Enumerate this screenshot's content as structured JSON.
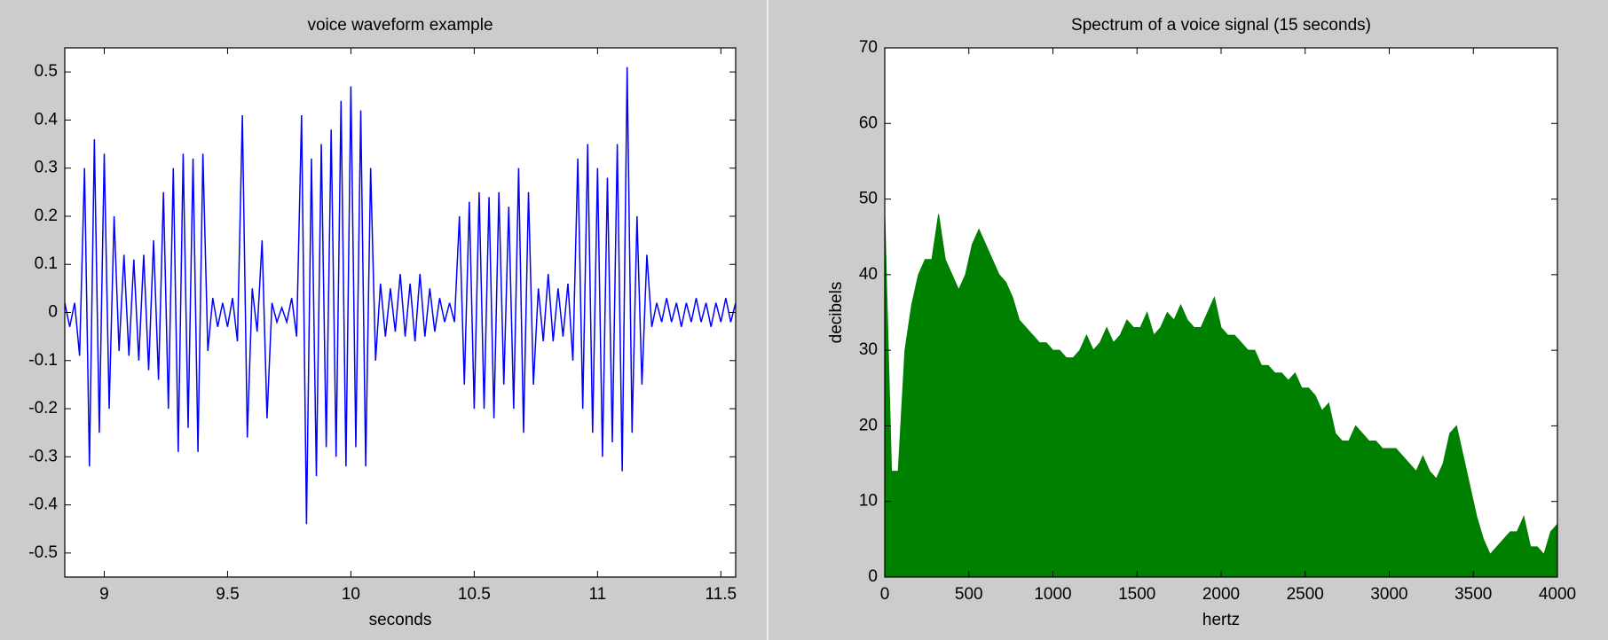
{
  "chart_data": [
    {
      "type": "line",
      "title": "voice waveform example",
      "xlabel": "seconds",
      "color": "#0000ff",
      "xlim": [
        8.84,
        11.56
      ],
      "ylim": [
        -0.55,
        0.55
      ],
      "xticks": [
        9,
        9.5,
        10,
        10.5,
        11,
        11.5
      ],
      "yticks": [
        -0.5,
        -0.4,
        -0.3,
        -0.2,
        -0.1,
        0,
        0.1,
        0.2,
        0.3,
        0.4,
        0.5
      ],
      "x": [
        8.84,
        8.86,
        8.88,
        8.9,
        8.92,
        8.94,
        8.96,
        8.98,
        9,
        9.02,
        9.04,
        9.06,
        9.08,
        9.1,
        9.12,
        9.14,
        9.16,
        9.18,
        9.2,
        9.22,
        9.24,
        9.26,
        9.28,
        9.3,
        9.32,
        9.34,
        9.36,
        9.38,
        9.4,
        9.42,
        9.44,
        9.46,
        9.48,
        9.5,
        9.52,
        9.54,
        9.56,
        9.58,
        9.6,
        9.62,
        9.64,
        9.66,
        9.68,
        9.7,
        9.72,
        9.74,
        9.76,
        9.78,
        9.8,
        9.82,
        9.84,
        9.86,
        9.88,
        9.9,
        9.92,
        9.94,
        9.96,
        9.98,
        10,
        10.02,
        10.04,
        10.06,
        10.08,
        10.1,
        10.12,
        10.14,
        10.16,
        10.18,
        10.2,
        10.22,
        10.24,
        10.26,
        10.28,
        10.3,
        10.32,
        10.34,
        10.36,
        10.38,
        10.4,
        10.42,
        10.44,
        10.46,
        10.48,
        10.5,
        10.52,
        10.54,
        10.56,
        10.58,
        10.6,
        10.62,
        10.64,
        10.66,
        10.68,
        10.7,
        10.72,
        10.74,
        10.76,
        10.78,
        10.8,
        10.82,
        10.84,
        10.86,
        10.88,
        10.9,
        10.92,
        10.94,
        10.96,
        10.98,
        11,
        11.02,
        11.04,
        11.06,
        11.08,
        11.1,
        11.12,
        11.14,
        11.16,
        11.18,
        11.2,
        11.22,
        11.24,
        11.26,
        11.28,
        11.3,
        11.32,
        11.34,
        11.36,
        11.38,
        11.4,
        11.42,
        11.44,
        11.46,
        11.48,
        11.5,
        11.52,
        11.54,
        11.56
      ],
      "values": [
        0.02,
        -0.03,
        0.02,
        -0.09,
        0.3,
        -0.32,
        0.36,
        -0.25,
        0.33,
        -0.2,
        0.2,
        -0.08,
        0.12,
        -0.09,
        0.11,
        -0.1,
        0.12,
        -0.12,
        0.15,
        -0.14,
        0.25,
        -0.2,
        0.3,
        -0.29,
        0.33,
        -0.24,
        0.32,
        -0.29,
        0.33,
        -0.08,
        0.03,
        -0.03,
        0.02,
        -0.03,
        0.03,
        -0.06,
        0.41,
        -0.26,
        0.05,
        -0.04,
        0.15,
        -0.22,
        0.02,
        -0.02,
        0.01,
        -0.02,
        0.03,
        -0.05,
        0.41,
        -0.44,
        0.32,
        -0.34,
        0.35,
        -0.28,
        0.38,
        -0.3,
        0.44,
        -0.32,
        0.47,
        -0.28,
        0.42,
        -0.32,
        0.3,
        -0.1,
        0.06,
        -0.05,
        0.05,
        -0.04,
        0.08,
        -0.05,
        0.06,
        -0.06,
        0.08,
        -0.05,
        0.05,
        -0.04,
        0.03,
        -0.02,
        0.02,
        -0.02,
        0.2,
        -0.15,
        0.23,
        -0.2,
        0.25,
        -0.2,
        0.24,
        -0.22,
        0.25,
        -0.15,
        0.22,
        -0.2,
        0.3,
        -0.25,
        0.25,
        -0.15,
        0.05,
        -0.06,
        0.08,
        -0.06,
        0.05,
        -0.05,
        0.06,
        -0.1,
        0.32,
        -0.2,
        0.35,
        -0.25,
        0.3,
        -0.3,
        0.28,
        -0.27,
        0.35,
        -0.33,
        0.51,
        -0.25,
        0.2,
        -0.15,
        0.12,
        -0.03,
        0.02,
        -0.02,
        0.03,
        -0.02,
        0.02,
        -0.03,
        0.02,
        -0.02,
        0.03,
        -0.02,
        0.02,
        -0.03,
        0.02,
        -0.02,
        0.03,
        -0.02,
        0.02
      ]
    },
    {
      "type": "area",
      "title": "Spectrum of a voice signal (15 seconds)",
      "xlabel": "hertz",
      "ylabel": "decibels",
      "color": "#008000",
      "xlim": [
        0,
        4000
      ],
      "ylim": [
        0,
        70
      ],
      "xticks": [
        0,
        500,
        1000,
        1500,
        2000,
        2500,
        3000,
        3500,
        4000
      ],
      "yticks": [
        0,
        10,
        20,
        30,
        40,
        50,
        60,
        70
      ],
      "x": [
        0,
        40,
        80,
        120,
        160,
        200,
        240,
        280,
        320,
        360,
        400,
        440,
        480,
        520,
        560,
        600,
        640,
        680,
        720,
        760,
        800,
        840,
        880,
        920,
        960,
        1000,
        1040,
        1080,
        1120,
        1160,
        1200,
        1240,
        1280,
        1320,
        1360,
        1400,
        1440,
        1480,
        1520,
        1560,
        1600,
        1640,
        1680,
        1720,
        1760,
        1800,
        1840,
        1880,
        1920,
        1960,
        2000,
        2040,
        2080,
        2120,
        2160,
        2200,
        2240,
        2280,
        2320,
        2360,
        2400,
        2440,
        2480,
        2520,
        2560,
        2600,
        2640,
        2680,
        2720,
        2760,
        2800,
        2840,
        2880,
        2920,
        2960,
        3000,
        3040,
        3080,
        3120,
        3160,
        3200,
        3240,
        3280,
        3320,
        3360,
        3400,
        3440,
        3480,
        3520,
        3560,
        3600,
        3640,
        3680,
        3720,
        3760,
        3800,
        3840,
        3880,
        3920,
        3960,
        4000
      ],
      "values": [
        48,
        14,
        14,
        30,
        36,
        40,
        42,
        42,
        48,
        42,
        40,
        38,
        40,
        44,
        46,
        44,
        42,
        40,
        39,
        37,
        34,
        33,
        32,
        31,
        31,
        30,
        30,
        29,
        29,
        30,
        32,
        30,
        31,
        33,
        31,
        32,
        34,
        33,
        33,
        35,
        32,
        33,
        35,
        34,
        36,
        34,
        33,
        33,
        35,
        37,
        33,
        32,
        32,
        31,
        30,
        30,
        28,
        28,
        27,
        27,
        26,
        27,
        25,
        25,
        24,
        22,
        23,
        19,
        18,
        18,
        20,
        19,
        18,
        18,
        17,
        17,
        17,
        16,
        15,
        14,
        16,
        14,
        13,
        15,
        19,
        20,
        16,
        12,
        8,
        5,
        3,
        4,
        5,
        6,
        6,
        8,
        4,
        4,
        3,
        6,
        7
      ]
    }
  ]
}
